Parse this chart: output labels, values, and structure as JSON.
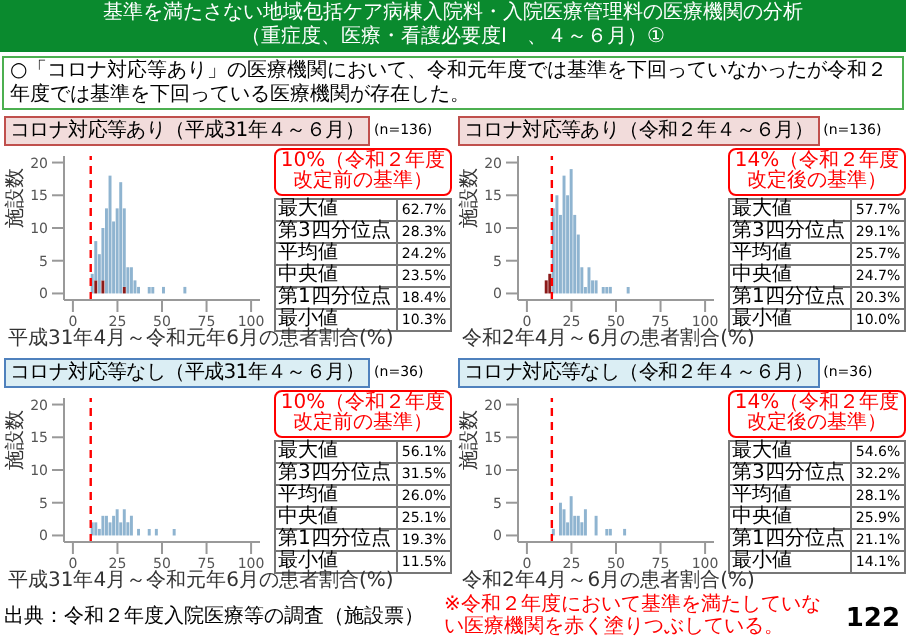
{
  "chart_data": [
    {
      "type": "other",
      "title": "基準を満たさない地域包括ケア病棟入院料・入院医療管理料の医療機関の分析",
      "subtitle": "（重症度、医療・看護必要度Ⅰ　、４～６月）①",
      "annotations": [
        "○「コロナ対応等あり」の医療機関において、令和元年度では基準を下回っていなかったが令和２年度では基準を下回っている医療機関が存在した。",
        "出典：令和２年度入院医療等の調査（施設票）",
        "※令和２年度において基準を満たしていない医療機関を赤く塗りつぶしている。",
        "122"
      ]
    },
    {
      "type": "bar",
      "title": "コロナ対応等あり（平成31年４～６月）",
      "xlabel": "平成31年4月～令和元年6月の患者割合(%)",
      "ylabel": "施設数",
      "stacked": true,
      "x": [
        11,
        13,
        15,
        17,
        19,
        21,
        23,
        25,
        27,
        29,
        31,
        33,
        35,
        37,
        39,
        41,
        43,
        45,
        47,
        49,
        51,
        53,
        55,
        57,
        59,
        61,
        63
      ],
      "series": [
        {
          "color": "#8b1a1a",
          "values": [
            0,
            2,
            0,
            2,
            0,
            0,
            0,
            0,
            0,
            1,
            0,
            0,
            0,
            0,
            0,
            0,
            0,
            0,
            0,
            0,
            0,
            0,
            0,
            0,
            0,
            0,
            0
          ]
        },
        {
          "color": "#8fb4d0",
          "values": [
            3,
            6,
            6,
            8,
            13,
            18,
            11,
            13,
            17,
            12,
            4,
            4,
            2,
            1,
            0,
            0,
            1,
            1,
            0,
            0,
            1,
            0,
            0,
            0,
            0,
            0,
            1
          ]
        }
      ],
      "xlim": [
        -5,
        105
      ],
      "xticks": [
        0,
        25,
        50,
        75,
        100
      ],
      "ylim": [
        -1,
        21
      ],
      "yticks": [
        0,
        5,
        10,
        15,
        20
      ],
      "ref_lines": [
        {
          "axis": "x",
          "value": 10,
          "label": "10%（令和２年度改定前の基準）",
          "color": "#ff0000",
          "line_style": "dashed"
        }
      ],
      "annotations": [
        "(n=136)",
        "最大値",
        "62.7%",
        "第3四分位点",
        "28.3%",
        "平均値",
        "24.2%",
        "中央値",
        "23.5%",
        "第1四分位点",
        "18.4%",
        "最小値",
        "10.3%"
      ]
    },
    {
      "type": "bar",
      "title": "コロナ対応等あり（令和２年４～６月）",
      "xlabel": "令和2年4月～6月の患者割合(%)",
      "ylabel": "施設数",
      "stacked": true,
      "x": [
        11,
        13,
        15,
        17,
        19,
        21,
        23,
        25,
        27,
        29,
        31,
        33,
        35,
        37,
        39,
        41,
        43,
        45,
        47,
        49,
        51,
        53,
        55,
        57
      ],
      "series": [
        {
          "color": "#8b1a1a",
          "values": [
            2,
            3,
            0,
            0,
            0,
            0,
            0,
            0,
            0,
            0,
            0,
            0,
            0,
            0,
            0,
            0,
            0,
            0,
            0,
            0,
            0,
            0,
            0,
            0
          ]
        },
        {
          "color": "#8fb4d0",
          "values": [
            0,
            0,
            13,
            15,
            12,
            18,
            15,
            19,
            12,
            9,
            4,
            1,
            4,
            2,
            2,
            0,
            1,
            1,
            1,
            0,
            0,
            0,
            0,
            1
          ]
        }
      ],
      "xlim": [
        -5,
        105
      ],
      "xticks": [
        0,
        25,
        50,
        75,
        100
      ],
      "ylim": [
        -1,
        21
      ],
      "yticks": [
        0,
        5,
        10,
        15,
        20
      ],
      "ref_lines": [
        {
          "axis": "x",
          "value": 14,
          "label": "14%（令和２年度改定後の基準）",
          "color": "#ff0000",
          "line_style": "dashed"
        }
      ],
      "annotations": [
        "(n=136)",
        "最大値",
        "57.7%",
        "第3四分位点",
        "29.1%",
        "平均値",
        "25.7%",
        "中央値",
        "24.7%",
        "第1四分位点",
        "20.3%",
        "最小値",
        "10.0%"
      ]
    },
    {
      "type": "histogram",
      "title": "コロナ対応等なし（平成31年４～６月）",
      "xlabel": "平成31年4月～令和元年6月の患者割合(%)",
      "ylabel": "施設数",
      "bins": [
        10,
        12,
        14,
        16,
        18,
        20,
        22,
        24,
        26,
        28,
        30,
        32,
        34,
        36,
        38,
        40,
        42,
        44,
        46,
        48,
        50,
        52,
        54,
        56,
        58
      ],
      "series": [
        {
          "color": "#8fb4d0",
          "values": [
            2,
            2,
            1,
            3,
            3,
            2,
            3,
            4,
            2,
            4,
            2,
            3,
            0,
            1,
            0,
            0,
            1,
            0,
            1,
            0,
            0,
            0,
            0,
            1
          ]
        }
      ],
      "xlim": [
        -5,
        105
      ],
      "xticks": [
        0,
        25,
        50,
        75,
        100
      ],
      "ylim": [
        -1,
        21
      ],
      "yticks": [
        0,
        5,
        10,
        15,
        20
      ],
      "ref_lines": [
        {
          "axis": "x",
          "value": 10,
          "label": "10%（令和２年度改定前の基準）",
          "color": "#ff0000",
          "line_style": "dashed"
        }
      ],
      "annotations": [
        "(n=36)",
        "最大値",
        "56.1%",
        "第3四分位点",
        "31.5%",
        "平均値",
        "26.0%",
        "中央値",
        "25.1%",
        "第1四分位点",
        "19.3%",
        "最小値",
        "11.5%"
      ]
    },
    {
      "type": "histogram",
      "title": "コロナ対応等なし（令和２年４～６月）",
      "xlabel": "令和2年4月～6月の患者割合(%)",
      "ylabel": "施設数",
      "bins": [
        14,
        16,
        18,
        20,
        22,
        24,
        26,
        28,
        30,
        32,
        34,
        36,
        38,
        40,
        42,
        44,
        46,
        48,
        50,
        52,
        54,
        56
      ],
      "series": [
        {
          "color": "#8fb4d0",
          "values": [
            1,
            0,
            5,
            4,
            2,
            6,
            3,
            3,
            2,
            4,
            0,
            0,
            3,
            0,
            0,
            1,
            1,
            0,
            0,
            0,
            1
          ]
        }
      ],
      "xlim": [
        -5,
        105
      ],
      "xticks": [
        0,
        25,
        50,
        75,
        100
      ],
      "ylim": [
        -1,
        21
      ],
      "yticks": [
        0,
        5,
        10,
        15,
        20
      ],
      "ref_lines": [
        {
          "axis": "x",
          "value": 14,
          "label": "14%（令和２年度改定後の基準）",
          "color": "#ff0000",
          "line_style": "dashed"
        }
      ],
      "annotations": [
        "(n=36)",
        "最大値",
        "54.6%",
        "第3四分位点",
        "32.2%",
        "平均値",
        "28.1%",
        "中央値",
        "25.9%",
        "第1四分位点",
        "21.1%",
        "最小値",
        "14.1%"
      ]
    }
  ]
}
